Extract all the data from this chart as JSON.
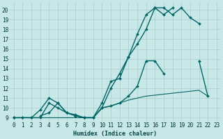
{
  "xlabel": "Humidex (Indice chaleur)",
  "bg_color": "#c8e8e8",
  "grid_color": "#aacccc",
  "line_color": "#006666",
  "xlim": [
    -0.5,
    23.5
  ],
  "ylim": [
    8.6,
    20.8
  ],
  "xticks": [
    0,
    1,
    2,
    3,
    4,
    5,
    6,
    7,
    8,
    9,
    10,
    11,
    12,
    13,
    14,
    15,
    16,
    17,
    18,
    19,
    20,
    21,
    22,
    23
  ],
  "yticks": [
    9,
    10,
    11,
    12,
    13,
    14,
    15,
    16,
    17,
    18,
    19,
    20
  ],
  "lines": [
    {
      "x": [
        0,
        1,
        2,
        3,
        4,
        5,
        6,
        7,
        8,
        9,
        10,
        11,
        12,
        13,
        14,
        15,
        16,
        17,
        18,
        19,
        20,
        21
      ],
      "y": [
        9,
        9,
        9,
        9,
        10.5,
        10,
        9.5,
        9.2,
        9,
        9,
        10.5,
        12.7,
        13,
        15.2,
        17.5,
        19.5,
        20.2,
        20.2,
        19.5,
        20.2,
        19.2,
        18.6
      ],
      "marker": "D",
      "markersize": 2.0,
      "linewidth": 1.0
    },
    {
      "x": [
        0,
        1,
        2,
        3,
        4,
        5,
        6,
        7,
        8,
        9,
        10,
        11,
        12,
        13,
        14,
        15,
        16,
        17,
        18,
        19,
        20,
        21
      ],
      "y": [
        9,
        9,
        9,
        9.8,
        11,
        10.5,
        9.5,
        9.3,
        9,
        9,
        10,
        12,
        13.5,
        15.2,
        16.5,
        18,
        20.2,
        19.5,
        20.2,
        null,
        null,
        null
      ],
      "marker": "D",
      "markersize": 2.0,
      "linewidth": 1.0
    },
    {
      "x": [
        0,
        1,
        2,
        3,
        4,
        5,
        6,
        7,
        8,
        9,
        10,
        11,
        12,
        13,
        14,
        15,
        16,
        17,
        18,
        19,
        20,
        21,
        22
      ],
      "y": [
        9,
        null,
        null,
        9.2,
        9.5,
        10.5,
        9.5,
        9.2,
        9,
        9,
        10,
        10.2,
        10.5,
        11.2,
        12.2,
        14.8,
        14.8,
        13.5,
        null,
        null,
        null,
        14.8,
        11.2
      ],
      "marker": "D",
      "markersize": 2.0,
      "linewidth": 1.0
    },
    {
      "x": [
        0,
        9,
        10,
        11,
        12,
        13,
        14,
        15,
        16,
        17,
        18,
        19,
        20,
        21,
        22
      ],
      "y": [
        9,
        9,
        10,
        10.2,
        10.5,
        10.8,
        11,
        11.2,
        11.3,
        11.4,
        11.5,
        11.6,
        11.7,
        11.8,
        11.2
      ],
      "marker": null,
      "markersize": 0,
      "linewidth": 0.8
    }
  ]
}
